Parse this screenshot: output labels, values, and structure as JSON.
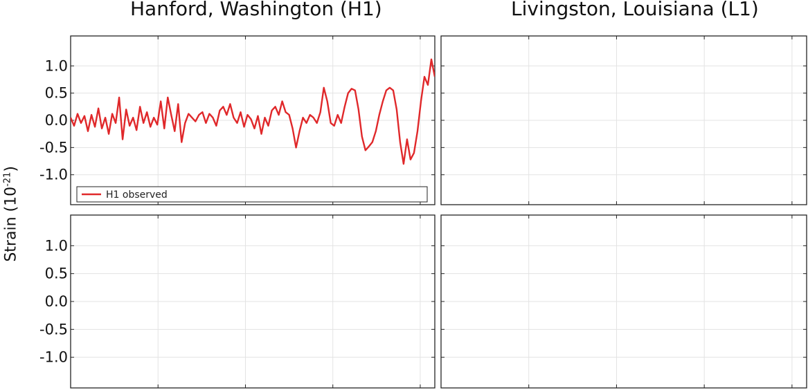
{
  "titles": {
    "left": "Hanford, Washington (H1)",
    "right": "Livingston, Louisiana (L1)"
  },
  "ylabel": {
    "main": "Strain (10",
    "exp": "-21",
    "close": ")"
  },
  "colors": {
    "h1": "#e0282a",
    "l1": "#3a4fa0",
    "h1_shifted": "#f0937a",
    "wavelet": "#c8c8c8",
    "template": "#888888",
    "grid": "#e3e3e3"
  },
  "chart_data": [
    {
      "type": "line",
      "panel": "top-left",
      "yticks": [
        "1.0",
        "0.5",
        "0.0",
        "-0.5",
        "-1.0"
      ],
      "ylim": [
        -1.55,
        1.55
      ],
      "xlim": [
        0.25,
        0.46
      ],
      "series": [
        {
          "name": "H1 observed",
          "color": "#e0282a",
          "points": [
            [
              0.25,
              0.05
            ],
            [
              0.252,
              -0.1
            ],
            [
              0.254,
              0.12
            ],
            [
              0.256,
              -0.05
            ],
            [
              0.258,
              0.08
            ],
            [
              0.26,
              -0.2
            ],
            [
              0.262,
              0.1
            ],
            [
              0.264,
              -0.12
            ],
            [
              0.266,
              0.22
            ],
            [
              0.268,
              -0.15
            ],
            [
              0.27,
              0.05
            ],
            [
              0.272,
              -0.25
            ],
            [
              0.274,
              0.12
            ],
            [
              0.276,
              -0.05
            ],
            [
              0.278,
              0.42
            ],
            [
              0.28,
              -0.35
            ],
            [
              0.282,
              0.2
            ],
            [
              0.284,
              -0.1
            ],
            [
              0.286,
              0.05
            ],
            [
              0.288,
              -0.18
            ],
            [
              0.29,
              0.25
            ],
            [
              0.292,
              -0.05
            ],
            [
              0.294,
              0.15
            ],
            [
              0.296,
              -0.12
            ],
            [
              0.298,
              0.05
            ],
            [
              0.3,
              -0.08
            ],
            [
              0.302,
              0.35
            ],
            [
              0.304,
              -0.15
            ],
            [
              0.306,
              0.42
            ],
            [
              0.308,
              0.1
            ],
            [
              0.31,
              -0.2
            ],
            [
              0.312,
              0.3
            ],
            [
              0.314,
              -0.4
            ],
            [
              0.316,
              -0.05
            ],
            [
              0.318,
              0.12
            ],
            [
              0.32,
              0.05
            ],
            [
              0.322,
              -0.02
            ],
            [
              0.324,
              0.1
            ],
            [
              0.326,
              0.15
            ],
            [
              0.328,
              -0.05
            ],
            [
              0.33,
              0.12
            ],
            [
              0.332,
              0.05
            ],
            [
              0.334,
              -0.1
            ],
            [
              0.336,
              0.18
            ],
            [
              0.338,
              0.25
            ],
            [
              0.34,
              0.1
            ],
            [
              0.342,
              0.3
            ],
            [
              0.344,
              0.05
            ],
            [
              0.346,
              -0.05
            ],
            [
              0.348,
              0.15
            ],
            [
              0.35,
              -0.12
            ],
            [
              0.352,
              0.1
            ],
            [
              0.354,
              0.02
            ],
            [
              0.356,
              -0.15
            ],
            [
              0.358,
              0.08
            ],
            [
              0.36,
              -0.25
            ],
            [
              0.362,
              0.05
            ],
            [
              0.364,
              -0.1
            ],
            [
              0.366,
              0.18
            ],
            [
              0.368,
              0.25
            ],
            [
              0.37,
              0.1
            ],
            [
              0.372,
              0.35
            ],
            [
              0.374,
              0.15
            ],
            [
              0.376,
              0.1
            ],
            [
              0.378,
              -0.15
            ],
            [
              0.38,
              -0.5
            ],
            [
              0.382,
              -0.2
            ],
            [
              0.384,
              0.05
            ],
            [
              0.386,
              -0.05
            ],
            [
              0.388,
              0.1
            ],
            [
              0.39,
              0.05
            ],
            [
              0.392,
              -0.05
            ],
            [
              0.394,
              0.15
            ],
            [
              0.396,
              0.6
            ],
            [
              0.398,
              0.35
            ],
            [
              0.4,
              -0.05
            ],
            [
              0.402,
              -0.1
            ],
            [
              0.404,
              0.1
            ],
            [
              0.406,
              -0.05
            ],
            [
              0.408,
              0.25
            ],
            [
              0.41,
              0.5
            ],
            [
              0.412,
              0.58
            ],
            [
              0.414,
              0.55
            ],
            [
              0.416,
              0.2
            ],
            [
              0.418,
              -0.3
            ],
            [
              0.42,
              -0.55
            ],
            [
              0.422,
              -0.48
            ],
            [
              0.424,
              -0.4
            ],
            [
              0.426,
              -0.2
            ],
            [
              0.428,
              0.1
            ],
            [
              0.43,
              0.35
            ],
            [
              0.432,
              0.55
            ],
            [
              0.434,
              0.6
            ],
            [
              0.436,
              0.55
            ],
            [
              0.438,
              0.2
            ],
            [
              0.44,
              -0.4
            ],
            [
              0.442,
              -0.8
            ],
            [
              0.444,
              -0.35
            ],
            [
              0.446,
              -0.72
            ],
            [
              0.448,
              -0.6
            ],
            [
              0.45,
              -0.2
            ],
            [
              0.452,
              0.35
            ],
            [
              0.454,
              0.8
            ],
            [
              0.456,
              0.65
            ],
            [
              0.458,
              1.12
            ],
            [
              0.46,
              0.8
            ]
          ]
        }
      ],
      "legend": [
        "H1 observed"
      ]
    }
  ]
}
